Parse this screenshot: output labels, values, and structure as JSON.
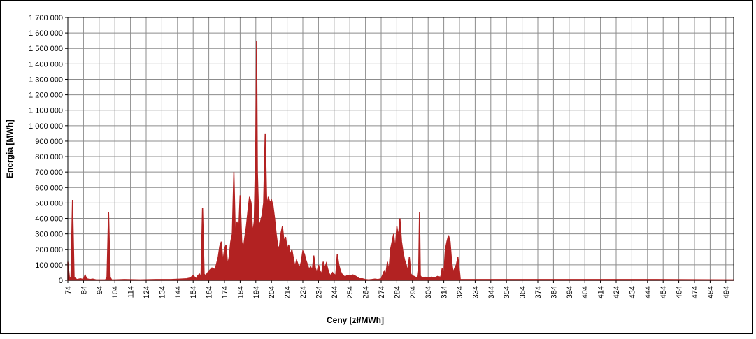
{
  "chart_data": {
    "type": "area",
    "x_label": "Ceny [zł/MWh]",
    "y_label": "Energia  [MWh]",
    "color": "#b22222",
    "grid": true,
    "xlim": [
      74,
      499
    ],
    "ylim": [
      0,
      1700000
    ],
    "xticks": [
      74,
      84,
      94,
      104,
      114,
      124,
      134,
      144,
      154,
      164,
      174,
      184,
      194,
      204,
      214,
      224,
      234,
      244,
      254,
      264,
      274,
      284,
      294,
      304,
      314,
      324,
      334,
      344,
      354,
      364,
      374,
      384,
      394,
      404,
      414,
      424,
      434,
      444,
      454,
      464,
      474,
      484,
      494
    ],
    "yticks": [
      0,
      {
        "value": 100000,
        "label": "100 000"
      },
      {
        "value": 200000,
        "label": "200 000"
      },
      {
        "value": 300000,
        "label": "300 000"
      },
      {
        "value": 400000,
        "label": "400 000"
      },
      {
        "value": 500000,
        "label": "500 000"
      },
      {
        "value": 600000,
        "label": "600 000"
      },
      {
        "value": 700000,
        "label": "700 000"
      },
      {
        "value": 800000,
        "label": "800 000"
      },
      {
        "value": 900000,
        "label": "900 000"
      },
      {
        "value": 1000000,
        "label": "1 000 000"
      },
      {
        "value": 1100000,
        "label": "1 100 000"
      },
      {
        "value": 1200000,
        "label": "1 200 000"
      },
      {
        "value": 1300000,
        "label": "1 300 000"
      },
      {
        "value": 1400000,
        "label": "1 400 000"
      },
      {
        "value": 1500000,
        "label": "1 500 000"
      },
      {
        "value": 1600000,
        "label": "1 600 000"
      },
      {
        "value": 1700000,
        "label": "1 700 000"
      }
    ],
    "x": [
      74,
      75,
      76,
      77,
      78,
      79,
      80,
      82,
      84,
      85,
      86,
      88,
      90,
      92,
      94,
      96,
      98,
      99,
      100,
      101,
      102,
      104,
      110,
      120,
      130,
      140,
      150,
      152,
      154,
      155,
      156,
      157,
      158,
      159,
      160,
      161,
      162,
      164,
      166,
      168,
      170,
      171,
      172,
      173,
      174,
      175,
      176,
      177,
      178,
      179,
      180,
      181,
      182,
      183,
      184,
      185,
      186,
      187,
      188,
      189,
      190,
      191,
      192,
      193,
      194,
      194.5,
      195,
      196,
      197,
      198,
      199,
      200,
      201,
      202,
      203,
      204,
      205,
      206,
      207,
      208,
      209,
      210,
      211,
      212,
      213,
      214,
      215,
      216,
      217,
      218,
      219,
      220,
      221,
      222,
      223,
      224,
      225,
      226,
      227,
      228,
      229,
      230,
      231,
      232,
      233,
      234,
      235,
      236,
      237,
      238,
      239,
      240,
      241,
      242,
      243,
      244,
      245,
      246,
      247,
      248,
      249,
      250,
      251,
      252,
      254,
      256,
      258,
      260,
      262,
      264,
      266,
      268,
      270,
      272,
      274,
      276,
      277,
      278,
      279,
      280,
      281,
      282,
      283,
      284,
      285,
      286,
      287,
      288,
      289,
      290,
      291,
      292,
      293,
      294,
      295,
      296,
      297,
      298,
      298.5,
      299,
      300,
      302,
      304,
      306,
      308,
      310,
      312,
      313,
      314,
      315,
      316,
      317,
      318,
      319,
      320,
      321,
      322,
      323,
      324,
      324.5,
      330,
      350,
      400,
      450,
      499
    ],
    "values": [
      120000,
      20000,
      10000,
      520000,
      20000,
      10000,
      5000,
      10000,
      5000,
      35000,
      10000,
      5000,
      8000,
      3000,
      3000,
      3000,
      3000,
      20000,
      440000,
      20000,
      3000,
      3000,
      5000,
      3000,
      5000,
      5000,
      10000,
      15000,
      30000,
      20000,
      10000,
      30000,
      40000,
      20000,
      470000,
      40000,
      30000,
      60000,
      80000,
      70000,
      150000,
      220000,
      250000,
      120000,
      200000,
      230000,
      100000,
      150000,
      250000,
      300000,
      700000,
      250000,
      380000,
      300000,
      550000,
      250000,
      200000,
      280000,
      350000,
      450000,
      540000,
      500000,
      300000,
      380000,
      900000,
      1550000,
      700000,
      350000,
      380000,
      420000,
      500000,
      950000,
      480000,
      540000,
      500000,
      520000,
      480000,
      400000,
      300000,
      220000,
      210000,
      300000,
      350000,
      250000,
      280000,
      200000,
      230000,
      160000,
      200000,
      140000,
      90000,
      130000,
      100000,
      80000,
      120000,
      190000,
      170000,
      130000,
      100000,
      70000,
      90000,
      60000,
      160000,
      80000,
      50000,
      100000,
      60000,
      40000,
      120000,
      80000,
      110000,
      70000,
      40000,
      30000,
      50000,
      40000,
      30000,
      170000,
      100000,
      60000,
      40000,
      30000,
      20000,
      30000,
      30000,
      35000,
      25000,
      10000,
      10000,
      5000,
      3000,
      5000,
      8000,
      5000,
      10000,
      60000,
      40000,
      120000,
      60000,
      200000,
      250000,
      300000,
      200000,
      350000,
      280000,
      400000,
      250000,
      180000,
      130000,
      100000,
      60000,
      150000,
      40000,
      30000,
      25000,
      20000,
      15000,
      100000,
      440000,
      30000,
      15000,
      20000,
      15000,
      20000,
      15000,
      25000,
      20000,
      80000,
      40000,
      200000,
      250000,
      290000,
      250000,
      120000,
      50000,
      80000,
      100000,
      150000,
      60000,
      5000,
      5000,
      5000,
      5000,
      5000,
      3000
    ]
  }
}
